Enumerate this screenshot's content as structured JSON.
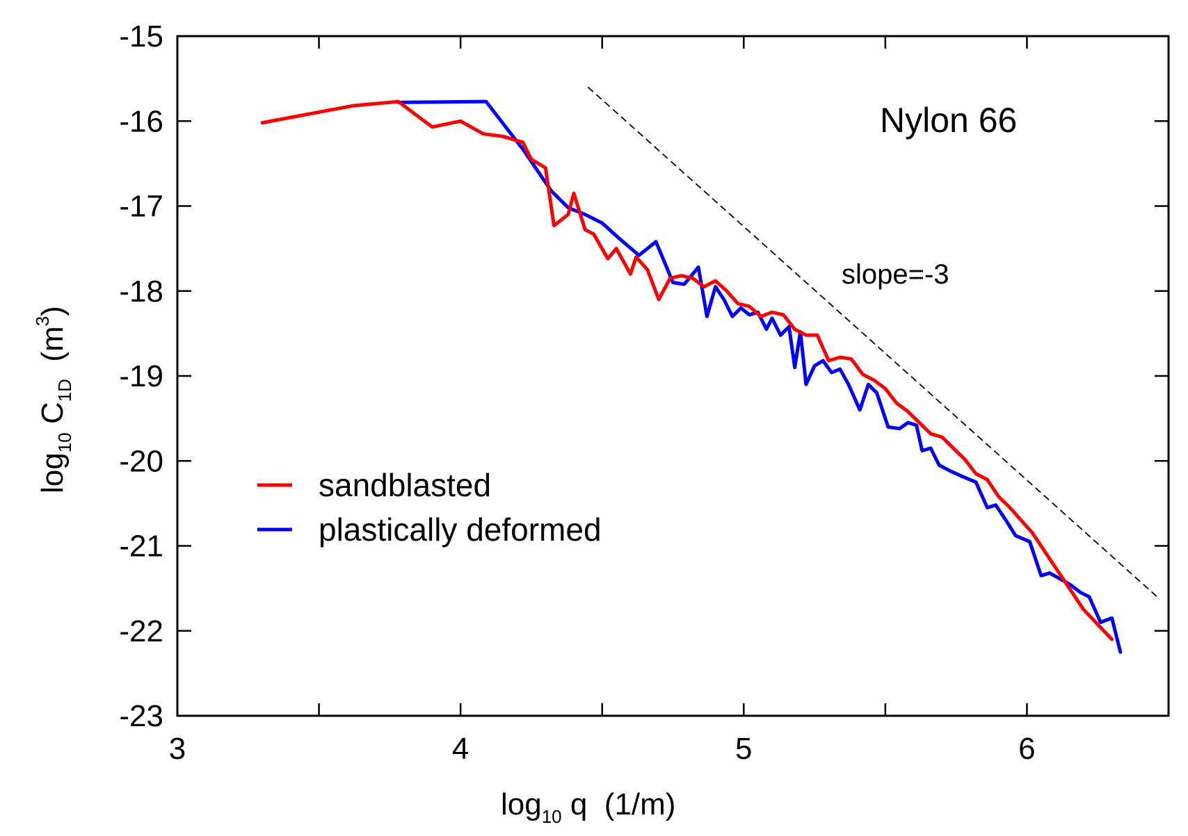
{
  "chart_data": {
    "type": "line",
    "title": "",
    "xlabel": {
      "base": "log",
      "sub": "10",
      "rest": " q  (1/m)"
    },
    "ylabel": {
      "base": "log",
      "sub": "10",
      "mid": " C",
      "sub2": "1D",
      "rest": "  (m",
      "sup": "3",
      "end": ")"
    },
    "xlim": [
      3,
      6.5
    ],
    "ylim": [
      -23,
      -15
    ],
    "xticks": [
      3,
      4,
      5,
      6
    ],
    "yticks": [
      -23,
      -22,
      -21,
      -20,
      -19,
      -18,
      -17,
      -16,
      -15
    ],
    "xtick_labels": [
      "3",
      "4",
      "5",
      "6"
    ],
    "ytick_labels": [
      "-23",
      "-22",
      "-21",
      "-20",
      "-19",
      "-18",
      "-17",
      "-16",
      "-15"
    ],
    "annotations": {
      "material": "Nylon 66",
      "slope": "slope=-3"
    },
    "reference_line": {
      "style": "dashed",
      "color": "#000000",
      "x": [
        4.45,
        6.46
      ],
      "y": [
        -15.6,
        -21.6
      ]
    },
    "legend": {
      "position": "lower-left",
      "entries": [
        "sandblasted",
        "plastically deformed"
      ]
    },
    "series": [
      {
        "name": "sandblasted",
        "color": "#ff0000",
        "x": [
          3.3,
          3.62,
          3.78,
          3.9,
          4.0,
          4.08,
          4.15,
          4.22,
          4.25,
          4.3,
          4.33,
          4.38,
          4.4,
          4.44,
          4.47,
          4.52,
          4.55,
          4.6,
          4.62,
          4.66,
          4.7,
          4.74,
          4.78,
          4.82,
          4.86,
          4.9,
          4.94,
          4.98,
          5.02,
          5.06,
          5.1,
          5.14,
          5.18,
          5.22,
          5.26,
          5.3,
          5.34,
          5.38,
          5.42,
          5.46,
          5.5,
          5.54,
          5.58,
          5.62,
          5.66,
          5.7,
          5.74,
          5.78,
          5.82,
          5.86,
          5.9,
          5.94,
          6.02,
          6.1,
          6.2,
          6.3
        ],
        "y": [
          -16.02,
          -15.82,
          -15.77,
          -16.07,
          -16.0,
          -16.15,
          -16.18,
          -16.25,
          -16.45,
          -16.55,
          -17.23,
          -17.1,
          -16.85,
          -17.28,
          -17.33,
          -17.62,
          -17.5,
          -17.8,
          -17.6,
          -17.75,
          -18.1,
          -17.85,
          -17.82,
          -17.85,
          -17.95,
          -17.88,
          -18.0,
          -18.15,
          -18.18,
          -18.3,
          -18.25,
          -18.28,
          -18.45,
          -18.52,
          -18.52,
          -18.82,
          -18.78,
          -18.8,
          -18.98,
          -19.05,
          -19.15,
          -19.32,
          -19.42,
          -19.55,
          -19.68,
          -19.72,
          -19.85,
          -19.98,
          -20.15,
          -20.22,
          -20.42,
          -20.55,
          -20.85,
          -21.25,
          -21.75,
          -22.1
        ]
      },
      {
        "name": "plastically deformed",
        "color": "#0000ff",
        "x": [
          3.78,
          4.09,
          4.22,
          4.32,
          4.38,
          4.44,
          4.5,
          4.56,
          4.63,
          4.69,
          4.75,
          4.79,
          4.84,
          4.87,
          4.9,
          4.93,
          4.96,
          4.99,
          5.02,
          5.05,
          5.08,
          5.1,
          5.13,
          5.16,
          5.18,
          5.2,
          5.22,
          5.25,
          5.28,
          5.31,
          5.34,
          5.37,
          5.41,
          5.44,
          5.47,
          5.51,
          5.55,
          5.58,
          5.61,
          5.63,
          5.66,
          5.69,
          5.73,
          5.77,
          5.82,
          5.86,
          5.89,
          5.93,
          5.96,
          6.01,
          6.05,
          6.08,
          6.15,
          6.19,
          6.22,
          6.26,
          6.3,
          6.33
        ],
        "y": [
          -15.78,
          -15.77,
          -16.33,
          -16.82,
          -17.02,
          -17.1,
          -17.2,
          -17.38,
          -17.58,
          -17.42,
          -17.9,
          -17.92,
          -17.72,
          -18.3,
          -17.95,
          -18.1,
          -18.3,
          -18.2,
          -18.28,
          -18.25,
          -18.45,
          -18.32,
          -18.52,
          -18.42,
          -18.9,
          -18.48,
          -19.1,
          -18.88,
          -18.82,
          -18.96,
          -18.92,
          -19.1,
          -19.4,
          -19.1,
          -19.2,
          -19.6,
          -19.62,
          -19.55,
          -19.58,
          -19.88,
          -19.85,
          -20.05,
          -20.12,
          -20.18,
          -20.25,
          -20.55,
          -20.52,
          -20.72,
          -20.88,
          -20.95,
          -21.35,
          -21.32,
          -21.45,
          -21.55,
          -21.6,
          -21.9,
          -21.85,
          -22.25
        ]
      }
    ]
  }
}
